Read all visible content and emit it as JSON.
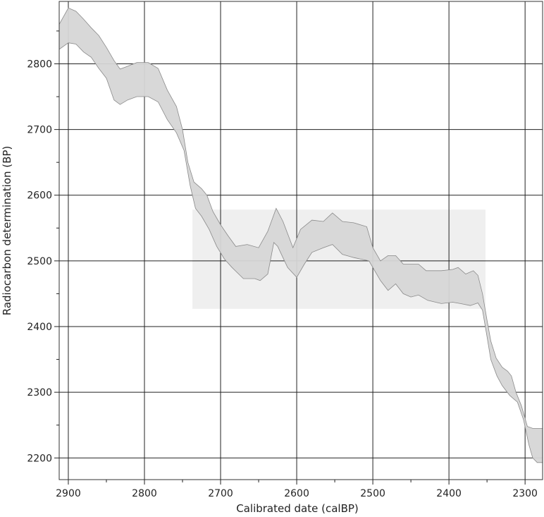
{
  "chart_data": {
    "type": "area",
    "title": "",
    "xlabel": "Calibrated date (calBP)",
    "ylabel": "Radiocarbon determination (BP)",
    "x_reversed": true,
    "xlim": [
      2912,
      2277
    ],
    "ylim": [
      2167,
      2895
    ],
    "x_ticks": [
      2900,
      2800,
      2700,
      2600,
      2500,
      2400,
      2300
    ],
    "y_ticks": [
      2200,
      2300,
      2400,
      2500,
      2600,
      2700,
      2800
    ],
    "grid": true,
    "highlight_box": {
      "x_range": [
        2737,
        2352
      ],
      "y_range": [
        2427,
        2578
      ],
      "color": "#efefef"
    },
    "band": {
      "color": "#d6d6d6",
      "edge_color": "#8a8a8a",
      "upper": [
        [
          2912,
          2860
        ],
        [
          2900,
          2885
        ],
        [
          2890,
          2880
        ],
        [
          2880,
          2868
        ],
        [
          2870,
          2855
        ],
        [
          2860,
          2843
        ],
        [
          2850,
          2825
        ],
        [
          2840,
          2805
        ],
        [
          2832,
          2792
        ],
        [
          2825,
          2795
        ],
        [
          2810,
          2802
        ],
        [
          2795,
          2802
        ],
        [
          2782,
          2793
        ],
        [
          2770,
          2760
        ],
        [
          2758,
          2735
        ],
        [
          2750,
          2700
        ],
        [
          2743,
          2650
        ],
        [
          2735,
          2620
        ],
        [
          2725,
          2610
        ],
        [
          2718,
          2600
        ],
        [
          2710,
          2575
        ],
        [
          2700,
          2555
        ],
        [
          2690,
          2538
        ],
        [
          2680,
          2522
        ],
        [
          2665,
          2525
        ],
        [
          2650,
          2520
        ],
        [
          2638,
          2545
        ],
        [
          2627,
          2580
        ],
        [
          2618,
          2560
        ],
        [
          2605,
          2520
        ],
        [
          2595,
          2548
        ],
        [
          2580,
          2562
        ],
        [
          2565,
          2560
        ],
        [
          2553,
          2573
        ],
        [
          2540,
          2560
        ],
        [
          2525,
          2558
        ],
        [
          2508,
          2552
        ],
        [
          2500,
          2520
        ],
        [
          2490,
          2500
        ],
        [
          2480,
          2508
        ],
        [
          2470,
          2508
        ],
        [
          2460,
          2495
        ],
        [
          2440,
          2495
        ],
        [
          2430,
          2485
        ],
        [
          2410,
          2485
        ],
        [
          2395,
          2487
        ],
        [
          2388,
          2490
        ],
        [
          2378,
          2480
        ],
        [
          2368,
          2485
        ],
        [
          2362,
          2478
        ],
        [
          2356,
          2450
        ],
        [
          2350,
          2410
        ],
        [
          2345,
          2378
        ],
        [
          2338,
          2352
        ],
        [
          2330,
          2338
        ],
        [
          2323,
          2332
        ],
        [
          2318,
          2325
        ],
        [
          2312,
          2300
        ],
        [
          2305,
          2280
        ],
        [
          2297,
          2248
        ],
        [
          2290,
          2245
        ],
        [
          2277,
          2245
        ]
      ],
      "lower": [
        [
          2912,
          2822
        ],
        [
          2900,
          2832
        ],
        [
          2890,
          2830
        ],
        [
          2880,
          2818
        ],
        [
          2870,
          2810
        ],
        [
          2860,
          2793
        ],
        [
          2850,
          2778
        ],
        [
          2840,
          2745
        ],
        [
          2832,
          2738
        ],
        [
          2822,
          2745
        ],
        [
          2810,
          2750
        ],
        [
          2795,
          2750
        ],
        [
          2782,
          2742
        ],
        [
          2770,
          2715
        ],
        [
          2758,
          2695
        ],
        [
          2748,
          2668
        ],
        [
          2740,
          2615
        ],
        [
          2733,
          2580
        ],
        [
          2725,
          2568
        ],
        [
          2715,
          2548
        ],
        [
          2705,
          2522
        ],
        [
          2695,
          2503
        ],
        [
          2685,
          2490
        ],
        [
          2670,
          2473
        ],
        [
          2655,
          2473
        ],
        [
          2648,
          2470
        ],
        [
          2638,
          2480
        ],
        [
          2630,
          2528
        ],
        [
          2625,
          2522
        ],
        [
          2612,
          2490
        ],
        [
          2600,
          2475
        ],
        [
          2590,
          2495
        ],
        [
          2580,
          2513
        ],
        [
          2565,
          2520
        ],
        [
          2553,
          2525
        ],
        [
          2540,
          2510
        ],
        [
          2525,
          2505
        ],
        [
          2505,
          2500
        ],
        [
          2490,
          2470
        ],
        [
          2480,
          2455
        ],
        [
          2470,
          2465
        ],
        [
          2460,
          2450
        ],
        [
          2450,
          2445
        ],
        [
          2440,
          2448
        ],
        [
          2428,
          2440
        ],
        [
          2410,
          2435
        ],
        [
          2395,
          2437
        ],
        [
          2385,
          2435
        ],
        [
          2372,
          2432
        ],
        [
          2362,
          2436
        ],
        [
          2356,
          2425
        ],
        [
          2350,
          2385
        ],
        [
          2345,
          2350
        ],
        [
          2337,
          2325
        ],
        [
          2330,
          2310
        ],
        [
          2320,
          2295
        ],
        [
          2310,
          2285
        ],
        [
          2302,
          2258
        ],
        [
          2295,
          2220
        ],
        [
          2290,
          2200
        ],
        [
          2284,
          2193
        ],
        [
          2277,
          2193
        ]
      ]
    }
  }
}
